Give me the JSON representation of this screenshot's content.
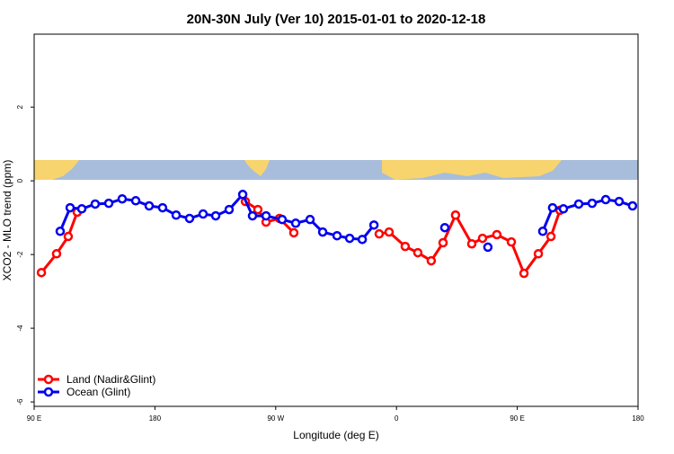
{
  "chart_data": {
    "type": "line",
    "title": "20N-30N July (Ver 10)   2015-01-01 to 2020-12-18",
    "x_label": "Longitude (deg E)",
    "y_label": "XCO2 - MLO trend (ppm)",
    "xlim": [
      90,
      540
    ],
    "xticks": [
      {
        "value": 90,
        "label": "90 E"
      },
      180,
      {
        "value": 270,
        "label": "90 W"
      },
      {
        "value": 360,
        "label": "0"
      },
      {
        "value": 450,
        "label": "90 E"
      },
      {
        "value": 540,
        "label": "180"
      }
    ],
    "ylim": [
      -6.12,
      3.98
    ],
    "yticks": [
      -6,
      -4,
      -2,
      0,
      2
    ],
    "legend": "bottomleft",
    "series": [
      {
        "name": "Land (Nadir&Glint)",
        "color": "#ff0000",
        "x": [
          95.4,
          106.7,
          115.4,
          122.1,
          null,
          247.4,
          256.7,
          262.8,
          272.8,
          283.5,
          null,
          347.1,
          354.5,
          366.5,
          375.9,
          385.9,
          394.7,
          404.0,
          416.1,
          424.1,
          434.8,
          445.6,
          455.0,
          465.7,
          475.1,
          481.8
        ],
        "values": [
          -2.49,
          -1.98,
          -1.51,
          -0.85,
          null,
          -0.56,
          -0.78,
          -1.12,
          -1.02,
          -1.41,
          null,
          -1.44,
          -1.39,
          -1.78,
          -1.95,
          -2.17,
          -1.68,
          -0.93,
          -1.71,
          -1.56,
          -1.46,
          -1.66,
          -2.51,
          -1.98,
          -1.51,
          -0.8
        ]
      },
      {
        "name": "Ocean (Glint)",
        "color": "#0000ee",
        "x": [
          109.4,
          116.8,
          125.5,
          135.5,
          145.6,
          155.6,
          165.7,
          175.7,
          185.7,
          195.8,
          205.8,
          215.9,
          225.3,
          235.3,
          245.4,
          252.7,
          262.8,
          274.8,
          284.9,
          295.6,
          305.0,
          315.7,
          325.1,
          334.5,
          343.2,
          null,
          396.0,
          null,
          428.1,
          null,
          469.0,
          476.3,
          484.4,
          495.8,
          505.8,
          515.9,
          525.9,
          535.9
        ],
        "values": [
          -1.37,
          -0.73,
          -0.76,
          -0.63,
          -0.61,
          -0.49,
          -0.54,
          -0.68,
          -0.73,
          -0.93,
          -1.02,
          -0.9,
          -0.95,
          -0.78,
          -0.37,
          -0.95,
          -0.95,
          -1.05,
          -1.15,
          -1.05,
          -1.39,
          -1.49,
          -1.56,
          -1.59,
          -1.2,
          null,
          -1.27,
          null,
          -1.8,
          null,
          -1.37,
          -0.73,
          -0.76,
          -0.63,
          -0.61,
          -0.51,
          -0.56,
          -0.68
        ]
      }
    ]
  }
}
